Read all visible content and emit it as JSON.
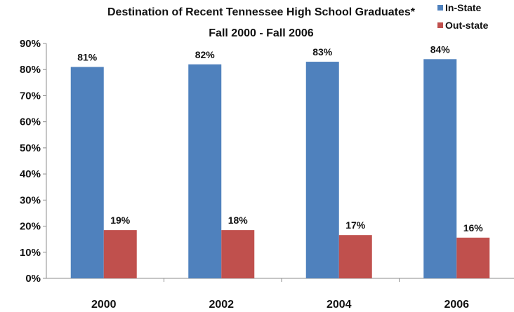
{
  "chart_data": {
    "type": "bar",
    "title_lines": [
      "Destination of Recent Tennessee High School Graduates*",
      "Fall 2000 - Fall 2006"
    ],
    "categories": [
      "2000",
      "2002",
      "2004",
      "2006"
    ],
    "series": [
      {
        "name": "In-State",
        "color": "#4F81BD",
        "values": [
          81,
          82,
          83,
          84
        ],
        "labels": [
          "81%",
          "82%",
          "83%",
          "84%"
        ]
      },
      {
        "name": "Out-state",
        "color": "#C0504D",
        "values": [
          18.5,
          18.5,
          16.6,
          15.6
        ],
        "labels": [
          "19%",
          "18%",
          "17%",
          "16%"
        ]
      }
    ],
    "yticks": [
      "0%",
      "10%",
      "20%",
      "30%",
      "40%",
      "50%",
      "60%",
      "70%",
      "80%",
      "90%"
    ],
    "ylim": [
      0,
      90
    ],
    "grid": false,
    "legend_position": "top-right"
  }
}
